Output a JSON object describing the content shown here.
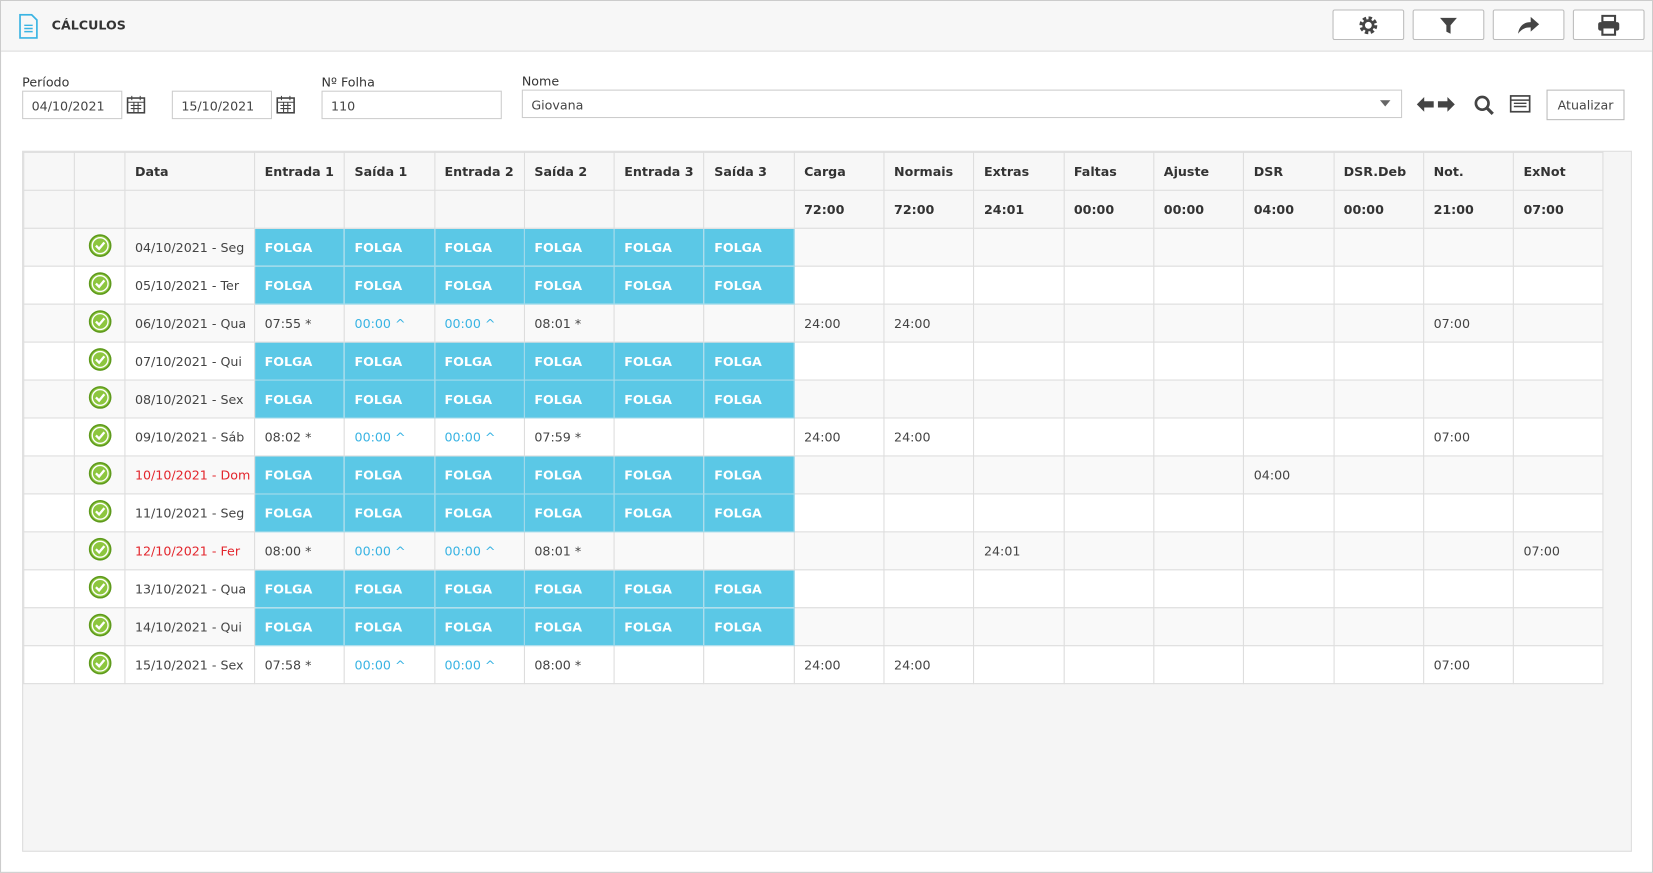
{
  "header": {
    "title": "CÁLCULOS"
  },
  "filters": {
    "period_label": "Período",
    "start": "04/10/2021",
    "end": "15/10/2021",
    "sheet_label": "Nº Folha",
    "sheet": "110",
    "name_label": "Nome",
    "name": "Giovana",
    "update_button": "Atualizar"
  },
  "table": {
    "columns": [
      null,
      null,
      "Data",
      "Entrada 1",
      "Saída 1",
      "Entrada 2",
      "Saída 2",
      "Entrada 3",
      "Saída 3",
      "Carga",
      "Normais",
      "Extras",
      "Faltas",
      "Ajuste",
      "DSR",
      "DSR.Deb",
      "Not.",
      "ExNot"
    ],
    "totals": [
      null,
      null,
      null,
      null,
      null,
      null,
      null,
      null,
      null,
      "72:00",
      "72:00",
      "24:01",
      "00:00",
      "00:00",
      "04:00",
      "00:00",
      "21:00",
      "07:00"
    ],
    "rows": [
      {
        "date": "04/10/2021 - Seg",
        "holiday": false,
        "day_off": true,
        "cells": [
          "FOLGA",
          "FOLGA",
          "FOLGA",
          "FOLGA",
          "FOLGA",
          "FOLGA",
          null,
          null,
          null,
          null,
          null,
          null,
          null,
          null,
          null
        ]
      },
      {
        "date": "05/10/2021 - Ter",
        "holiday": false,
        "day_off": true,
        "cells": [
          "FOLGA",
          "FOLGA",
          "FOLGA",
          "FOLGA",
          "FOLGA",
          "FOLGA",
          null,
          null,
          null,
          null,
          null,
          null,
          null,
          null,
          null
        ]
      },
      {
        "date": "06/10/2021 - Qua",
        "holiday": false,
        "day_off": false,
        "cells": [
          "07:55 *",
          {
            "text": "00:00 ^",
            "color": "#3ab4e3"
          },
          {
            "text": "00:00 ^",
            "color": "#3ab4e3"
          },
          "08:01 *",
          null,
          null,
          "24:00",
          "24:00",
          null,
          null,
          null,
          null,
          null,
          "07:00",
          null
        ]
      },
      {
        "date": "07/10/2021 - Qui",
        "holiday": false,
        "day_off": true,
        "cells": [
          "FOLGA",
          "FOLGA",
          "FOLGA",
          "FOLGA",
          "FOLGA",
          "FOLGA",
          null,
          null,
          null,
          null,
          null,
          null,
          null,
          null,
          null
        ]
      },
      {
        "date": "08/10/2021 - Sex",
        "holiday": false,
        "day_off": true,
        "cells": [
          "FOLGA",
          "FOLGA",
          "FOLGA",
          "FOLGA",
          "FOLGA",
          "FOLGA",
          null,
          null,
          null,
          null,
          null,
          null,
          null,
          null,
          null
        ]
      },
      {
        "date": "09/10/2021 - Sáb",
        "holiday": false,
        "day_off": false,
        "cells": [
          "08:02 *",
          {
            "text": "00:00 ^",
            "color": "#3ab4e3"
          },
          {
            "text": "00:00 ^",
            "color": "#3ab4e3"
          },
          "07:59 *",
          null,
          null,
          "24:00",
          "24:00",
          null,
          null,
          null,
          null,
          null,
          "07:00",
          null
        ]
      },
      {
        "date": "10/10/2021 - Dom",
        "holiday": true,
        "day_off": true,
        "cells": [
          "FOLGA",
          "FOLGA",
          "FOLGA",
          "FOLGA",
          "FOLGA",
          "FOLGA",
          null,
          null,
          null,
          null,
          null,
          "04:00",
          null,
          null,
          null
        ]
      },
      {
        "date": "11/10/2021 - Seg",
        "holiday": false,
        "day_off": true,
        "cells": [
          "FOLGA",
          "FOLGA",
          "FOLGA",
          "FOLGA",
          "FOLGA",
          "FOLGA",
          null,
          null,
          null,
          null,
          null,
          null,
          null,
          null,
          null
        ]
      },
      {
        "date": "12/10/2021 - Fer",
        "holiday": true,
        "day_off": false,
        "cells": [
          "08:00 *",
          {
            "text": "00:00 ^",
            "color": "#3ab4e3"
          },
          {
            "text": "00:00 ^",
            "color": "#3ab4e3"
          },
          "08:01 *",
          null,
          null,
          null,
          null,
          "24:01",
          null,
          null,
          null,
          null,
          null,
          "07:00"
        ]
      },
      {
        "date": "13/10/2021 - Qua",
        "holiday": false,
        "day_off": true,
        "cells": [
          "FOLGA",
          "FOLGA",
          "FOLGA",
          "FOLGA",
          "FOLGA",
          "FOLGA",
          null,
          null,
          null,
          null,
          null,
          null,
          null,
          null,
          null
        ]
      },
      {
        "date": "14/10/2021 - Qui",
        "holiday": false,
        "day_off": true,
        "cells": [
          "FOLGA",
          "FOLGA",
          "FOLGA",
          "FOLGA",
          "FOLGA",
          "FOLGA",
          null,
          null,
          null,
          null,
          null,
          null,
          null,
          null,
          null
        ]
      },
      {
        "date": "15/10/2021 - Sex",
        "holiday": false,
        "day_off": false,
        "cells": [
          "07:58 *",
          {
            "text": "00:00 ^",
            "color": "#3ab4e3"
          },
          {
            "text": "00:00 ^",
            "color": "#3ab4e3"
          },
          "08:00 *",
          null,
          null,
          "24:00",
          "24:00",
          null,
          null,
          null,
          null,
          null,
          "07:00",
          null
        ]
      }
    ]
  }
}
